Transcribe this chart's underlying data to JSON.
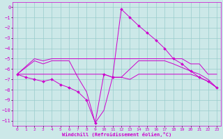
{
  "xlabel": "Windchill (Refroidissement éolien,°C)",
  "bg_color": "#cce8e8",
  "grid_color": "#99cccc",
  "line_color": "#cc00cc",
  "xlim": [
    -0.5,
    23.5
  ],
  "ylim": [
    -11.5,
    0.5
  ],
  "yticks": [
    0,
    -1,
    -2,
    -3,
    -4,
    -5,
    -6,
    -7,
    -8,
    -9,
    -10,
    -11
  ],
  "xticks": [
    0,
    1,
    2,
    3,
    4,
    5,
    6,
    7,
    8,
    9,
    10,
    11,
    12,
    13,
    14,
    15,
    16,
    17,
    18,
    19,
    20,
    21,
    22,
    23
  ],
  "lines": [
    {
      "x": [
        0,
        1,
        2,
        3,
        4,
        5,
        6,
        7,
        8,
        9,
        10,
        11,
        12,
        13,
        14,
        15,
        16,
        17,
        18,
        19,
        20,
        21,
        22,
        23
      ],
      "y": [
        -6.5,
        -6.8,
        -7.0,
        -7.2,
        -7.0,
        -7.5,
        -7.8,
        -8.2,
        -9.0,
        -11.2,
        -6.5,
        -6.8,
        -0.2,
        -1.0,
        -1.8,
        -2.5,
        -3.2,
        -4.0,
        -5.0,
        -5.5,
        -6.2,
        -6.8,
        -7.2,
        -7.8
      ],
      "has_markers": true
    },
    {
      "x": [
        0,
        2,
        3,
        4,
        5,
        6,
        10,
        11,
        12,
        13,
        14,
        15,
        16,
        17,
        18,
        19,
        20,
        21,
        22,
        23
      ],
      "y": [
        -6.5,
        -5.0,
        -5.2,
        -5.0,
        -5.0,
        -5.0,
        -5.0,
        -5.0,
        -5.0,
        -5.0,
        -5.0,
        -5.0,
        -5.0,
        -5.0,
        -5.0,
        -5.0,
        -5.5,
        -5.5,
        -6.5,
        -6.5
      ],
      "has_markers": false
    },
    {
      "x": [
        0,
        2,
        3,
        4,
        5,
        6,
        7,
        8,
        9,
        10,
        11,
        12,
        14,
        16,
        17,
        18,
        20,
        21,
        22,
        23
      ],
      "y": [
        -6.5,
        -5.2,
        -5.5,
        -5.2,
        -5.2,
        -5.2,
        -6.8,
        -8.2,
        -11.2,
        -10.0,
        -6.8,
        -6.8,
        -5.2,
        -5.2,
        -5.2,
        -5.5,
        -6.2,
        -6.5,
        -7.0,
        -7.8
      ],
      "has_markers": false
    },
    {
      "x": [
        0,
        10,
        11,
        12,
        13,
        14,
        15,
        16,
        20,
        21,
        22,
        23
      ],
      "y": [
        -6.5,
        -6.5,
        -6.8,
        -6.8,
        -7.0,
        -6.5,
        -6.5,
        -6.5,
        -6.5,
        -6.8,
        -7.2,
        -7.8
      ],
      "has_markers": false
    }
  ]
}
